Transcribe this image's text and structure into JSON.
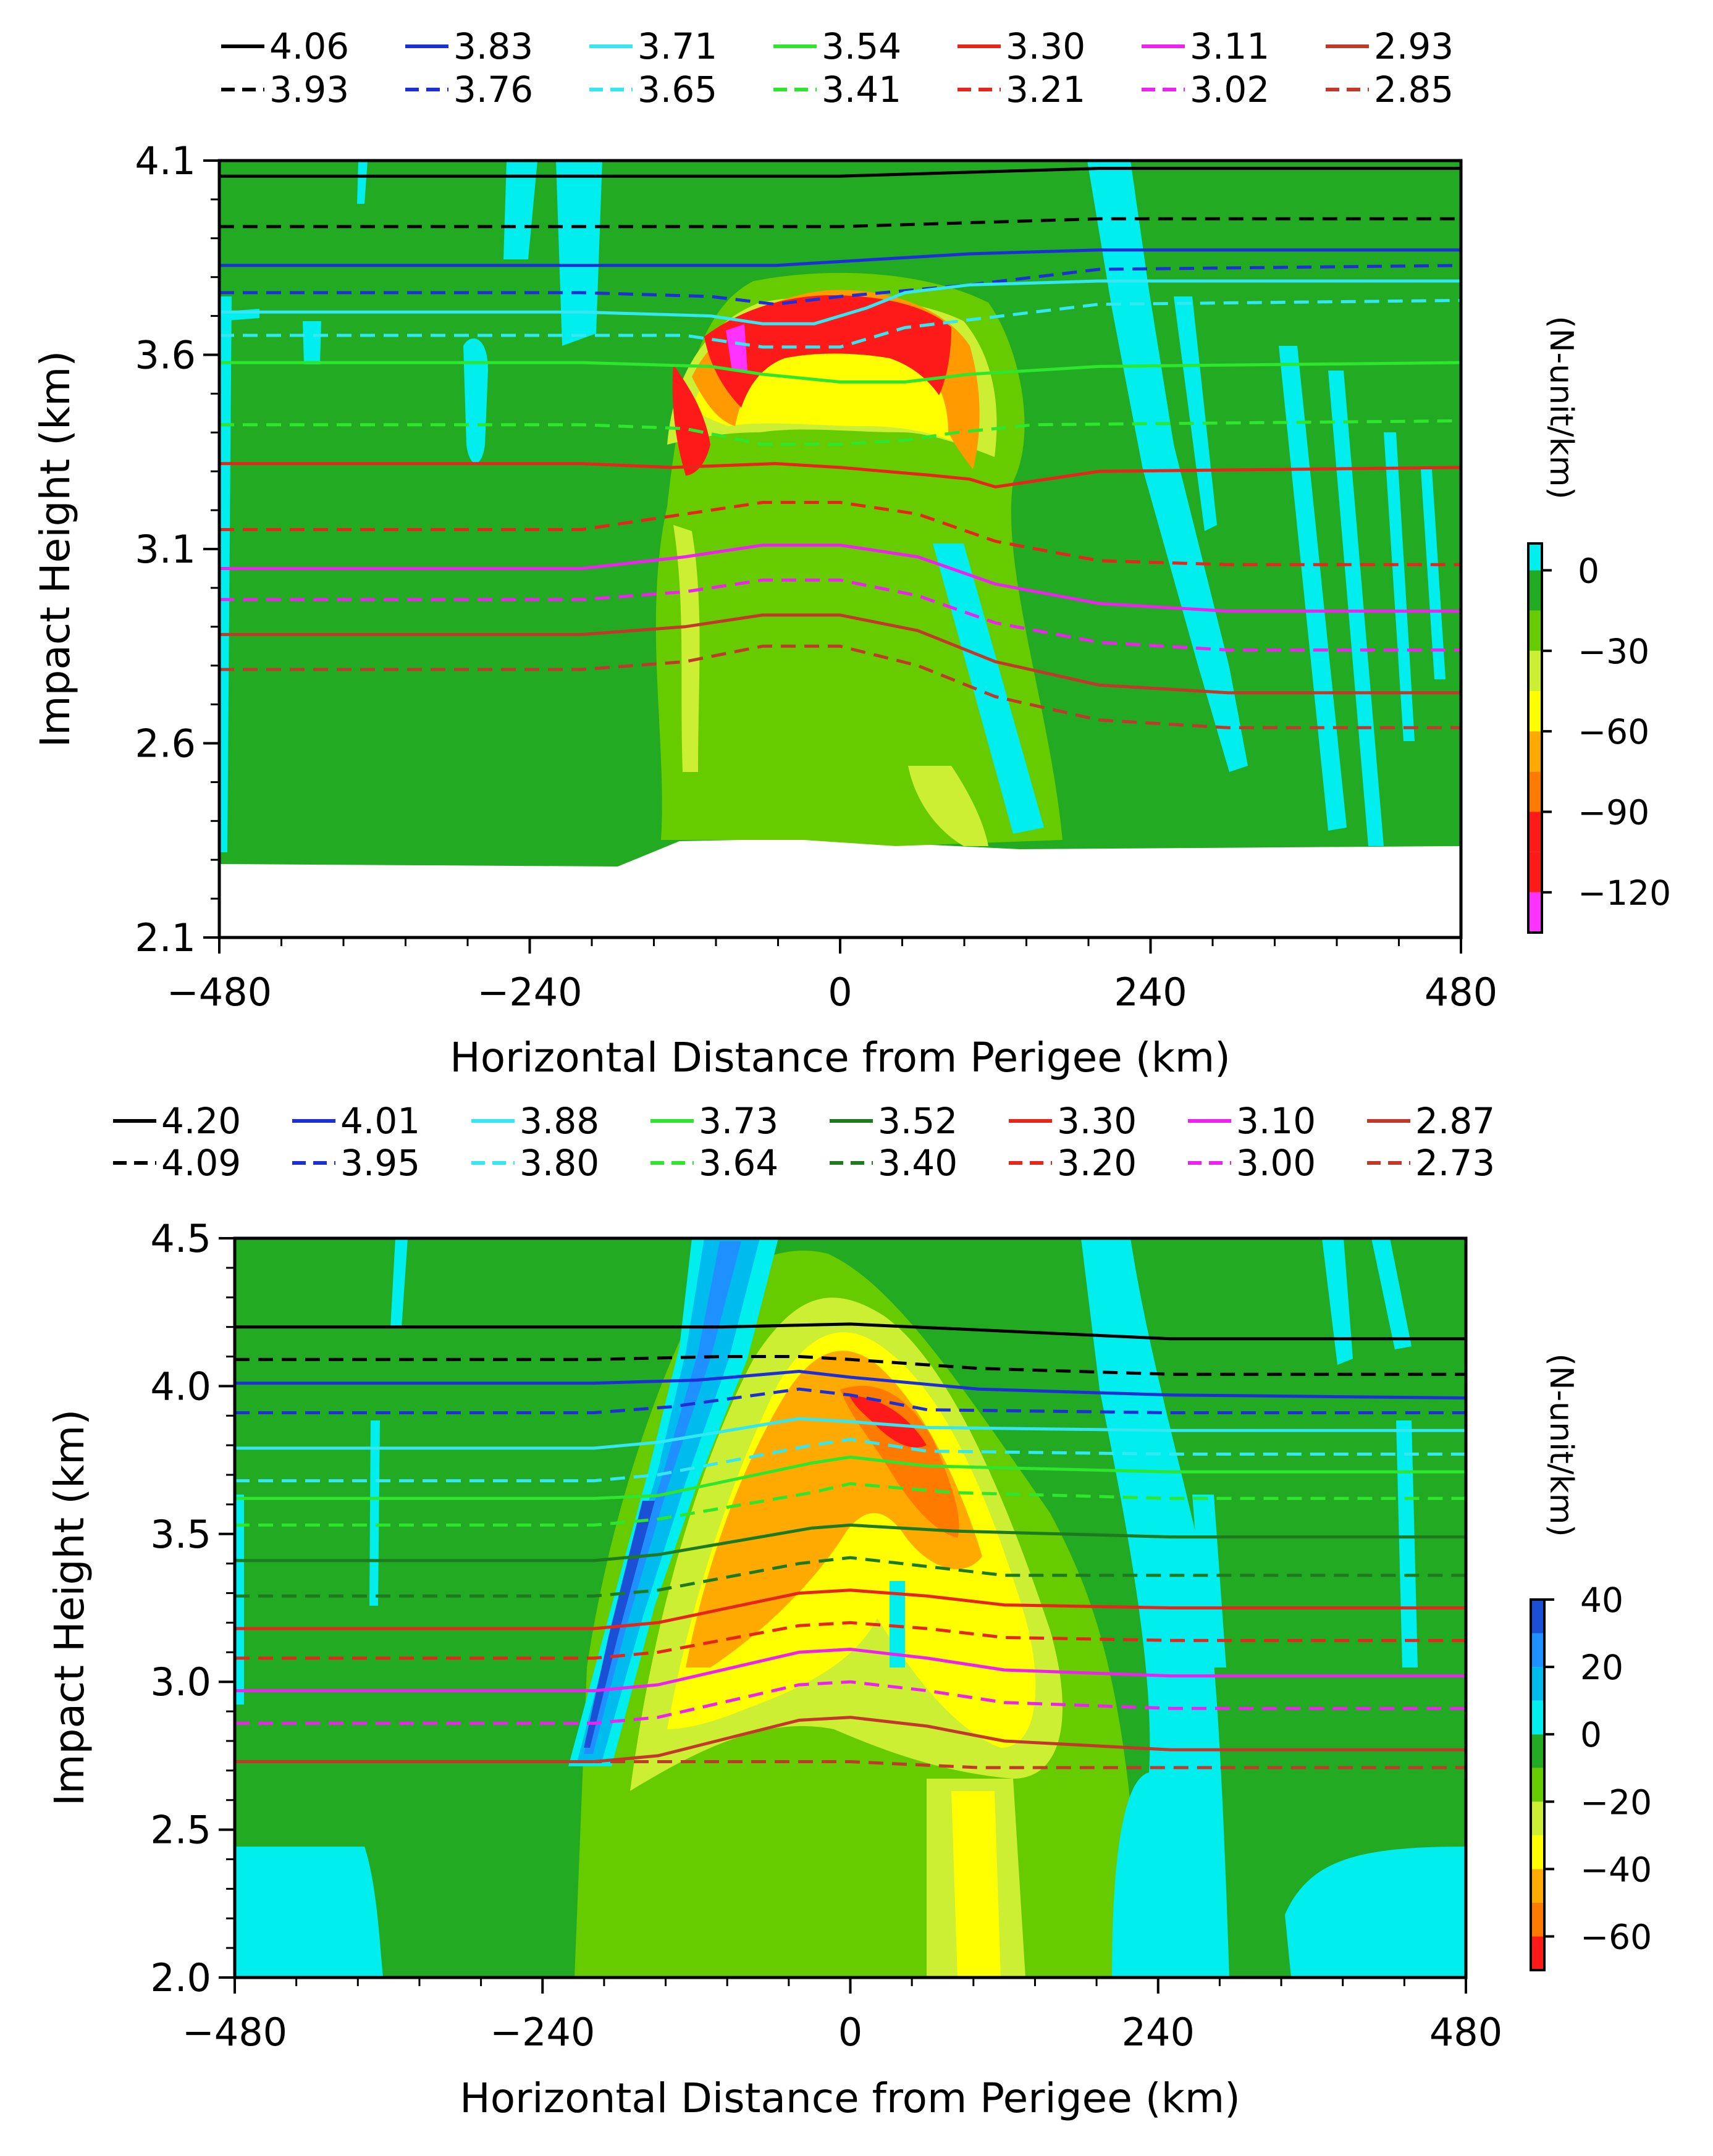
{
  "chart_data": [
    {
      "type": "contour",
      "panel": "top",
      "xlabel": "Horizontal Distance from Perigee (km)",
      "ylabel": "Impact Height (km)",
      "xlim": [
        -480,
        480
      ],
      "ylim": [
        2.1,
        4.1
      ],
      "xticks": [
        -480,
        -240,
        0,
        240,
        480
      ],
      "xtick_labels": [
        "−480",
        "−240",
        "0",
        "240",
        "480"
      ],
      "yticks": [
        2.1,
        2.6,
        3.1,
        3.6,
        4.1
      ],
      "ytick_labels": [
        "2.1",
        "2.6",
        "3.1",
        "3.6",
        "4.1"
      ],
      "colorbar": {
        "label": "(N-unit/km)",
        "range": [
          -135,
          10
        ],
        "ticks": [
          0,
          -30,
          -60,
          -90,
          -120
        ],
        "tick_labels": [
          "0",
          "−30",
          "−60",
          "−90",
          "−120"
        ],
        "levels": [
          {
            "from": -135,
            "to": -120,
            "color": "#ff33ff"
          },
          {
            "from": -120,
            "to": -105,
            "color": "#ff1a1a"
          },
          {
            "from": -105,
            "to": -90,
            "color": "#ff1a1a"
          },
          {
            "from": -90,
            "to": -75,
            "color": "#ff7b00"
          },
          {
            "from": -75,
            "to": -60,
            "color": "#ffaa00"
          },
          {
            "from": -60,
            "to": -45,
            "color": "#ffff00"
          },
          {
            "from": -45,
            "to": -30,
            "color": "#ccee33"
          },
          {
            "from": -30,
            "to": -15,
            "color": "#66cc00"
          },
          {
            "from": -15,
            "to": 0,
            "color": "#22aa22"
          },
          {
            "from": 0,
            "to": 10,
            "color": "#00eeee"
          }
        ]
      },
      "legend": [
        {
          "label": "4.06",
          "style": "solid",
          "color": "#000000"
        },
        {
          "label": "3.83",
          "style": "solid",
          "color": "#1f2fd6"
        },
        {
          "label": "3.71",
          "style": "solid",
          "color": "#33e8f2"
        },
        {
          "label": "3.54",
          "style": "solid",
          "color": "#2ee62e"
        },
        {
          "label": "3.30",
          "style": "solid",
          "color": "#e6261a"
        },
        {
          "label": "3.11",
          "style": "solid",
          "color": "#ee22ee"
        },
        {
          "label": "2.93",
          "style": "solid",
          "color": "#c0392b"
        },
        {
          "label": "3.93",
          "style": "dashed",
          "color": "#000000"
        },
        {
          "label": "3.76",
          "style": "dashed",
          "color": "#1f2fd6"
        },
        {
          "label": "3.65",
          "style": "dashed",
          "color": "#33e8f2"
        },
        {
          "label": "3.41",
          "style": "dashed",
          "color": "#2ee62e"
        },
        {
          "label": "3.21",
          "style": "dashed",
          "color": "#e6261a"
        },
        {
          "label": "3.02",
          "style": "dashed",
          "color": "#ee22ee"
        },
        {
          "label": "2.85",
          "style": "dashed",
          "color": "#c0392b"
        }
      ],
      "ray_paths": [
        {
          "label": "4.06",
          "x": [
            -480,
            -200,
            0,
            100,
            200,
            480
          ],
          "y": [
            4.06,
            4.06,
            4.06,
            4.07,
            4.08,
            4.08
          ]
        },
        {
          "label": "3.93",
          "x": [
            -480,
            -200,
            0,
            100,
            200,
            480
          ],
          "y": [
            3.93,
            3.93,
            3.93,
            3.94,
            3.95,
            3.95
          ]
        },
        {
          "label": "3.83",
          "x": [
            -480,
            -150,
            -50,
            0,
            100,
            200,
            480
          ],
          "y": [
            3.83,
            3.83,
            3.83,
            3.84,
            3.86,
            3.87,
            3.87
          ]
        },
        {
          "label": "3.76",
          "x": [
            -480,
            -200,
            -100,
            -50,
            0,
            100,
            200,
            480
          ],
          "y": [
            3.76,
            3.76,
            3.75,
            3.73,
            3.75,
            3.78,
            3.82,
            3.83
          ]
        },
        {
          "label": "3.71",
          "x": [
            -480,
            -200,
            -100,
            -60,
            -20,
            20,
            50,
            100,
            200,
            480
          ],
          "y": [
            3.71,
            3.71,
            3.7,
            3.68,
            3.68,
            3.72,
            3.76,
            3.78,
            3.79,
            3.79
          ]
        },
        {
          "label": "3.65",
          "x": [
            -480,
            -120,
            -60,
            0,
            50,
            100,
            200,
            480
          ],
          "y": [
            3.65,
            3.65,
            3.62,
            3.62,
            3.67,
            3.69,
            3.73,
            3.74
          ]
        },
        {
          "label": "3.54",
          "x": [
            -480,
            -200,
            -100,
            -60,
            0,
            50,
            100,
            200,
            480
          ],
          "y": [
            3.58,
            3.58,
            3.57,
            3.55,
            3.53,
            3.53,
            3.55,
            3.57,
            3.58
          ]
        },
        {
          "label": "3.41",
          "x": [
            -480,
            -200,
            -120,
            -60,
            0,
            50,
            90,
            150,
            480
          ],
          "y": [
            3.42,
            3.42,
            3.41,
            3.37,
            3.37,
            3.38,
            3.4,
            3.42,
            3.43
          ]
        },
        {
          "label": "3.30",
          "x": [
            -480,
            -200,
            -130,
            -50,
            0,
            70,
            100,
            120,
            200,
            480
          ],
          "y": [
            3.32,
            3.32,
            3.31,
            3.32,
            3.31,
            3.29,
            3.28,
            3.26,
            3.3,
            3.31
          ]
        },
        {
          "label": "3.21",
          "x": [
            -480,
            -200,
            -120,
            -60,
            0,
            60,
            120,
            200,
            300,
            480
          ],
          "y": [
            3.15,
            3.15,
            3.19,
            3.22,
            3.22,
            3.19,
            3.12,
            3.07,
            3.06,
            3.06
          ]
        },
        {
          "label": "3.11",
          "x": [
            -480,
            -200,
            -120,
            -60,
            0,
            60,
            120,
            200,
            300,
            480
          ],
          "y": [
            3.05,
            3.05,
            3.08,
            3.11,
            3.11,
            3.08,
            3.01,
            2.96,
            2.94,
            2.94
          ]
        },
        {
          "label": "3.02",
          "x": [
            -480,
            -200,
            -120,
            -60,
            0,
            60,
            120,
            200,
            300,
            480
          ],
          "y": [
            2.97,
            2.97,
            2.99,
            3.02,
            3.02,
            2.98,
            2.91,
            2.86,
            2.84,
            2.84
          ]
        },
        {
          "label": "2.93",
          "x": [
            -480,
            -200,
            -120,
            -60,
            0,
            60,
            120,
            200,
            300,
            480
          ],
          "y": [
            2.88,
            2.88,
            2.9,
            2.93,
            2.93,
            2.89,
            2.81,
            2.75,
            2.73,
            2.73
          ]
        },
        {
          "label": "2.85",
          "x": [
            -480,
            -200,
            -120,
            -60,
            0,
            60,
            120,
            200,
            300,
            480
          ],
          "y": [
            2.79,
            2.79,
            2.81,
            2.85,
            2.85,
            2.8,
            2.72,
            2.66,
            2.64,
            2.64
          ]
        }
      ]
    },
    {
      "type": "contour",
      "panel": "bottom",
      "xlabel": "Horizontal Distance from Perigee (km)",
      "ylabel": "Impact Height (km)",
      "xlim": [
        -480,
        480
      ],
      "ylim": [
        2.0,
        4.5
      ],
      "xticks": [
        -480,
        -240,
        0,
        240,
        480
      ],
      "xtick_labels": [
        "−480",
        "−240",
        "0",
        "240",
        "480"
      ],
      "yticks": [
        2.0,
        2.5,
        3.0,
        3.5,
        4.0,
        4.5
      ],
      "ytick_labels": [
        "2.0",
        "2.5",
        "3.0",
        "3.5",
        "4.0",
        "4.5"
      ],
      "colorbar": {
        "label": "(N-unit/km)",
        "range": [
          -70,
          40
        ],
        "ticks": [
          40,
          20,
          0,
          -20,
          -40,
          -60
        ],
        "tick_labels": [
          "40",
          "20",
          "0",
          "−20",
          "−40",
          "−60"
        ],
        "levels": [
          {
            "from": -70,
            "to": -60,
            "color": "#ff1a1a"
          },
          {
            "from": -60,
            "to": -50,
            "color": "#ff7b00"
          },
          {
            "from": -50,
            "to": -40,
            "color": "#ffaa00"
          },
          {
            "from": -40,
            "to": -30,
            "color": "#ffff00"
          },
          {
            "from": -30,
            "to": -20,
            "color": "#ccee33"
          },
          {
            "from": -20,
            "to": -10,
            "color": "#66cc00"
          },
          {
            "from": -10,
            "to": 0,
            "color": "#22aa22"
          },
          {
            "from": 0,
            "to": 10,
            "color": "#00eeee"
          },
          {
            "from": 10,
            "to": 20,
            "color": "#00bbee"
          },
          {
            "from": 20,
            "to": 30,
            "color": "#1e90ff"
          },
          {
            "from": 30,
            "to": 40,
            "color": "#1a4fd6"
          }
        ]
      },
      "legend": [
        {
          "label": "4.20",
          "style": "solid",
          "color": "#000000"
        },
        {
          "label": "4.01",
          "style": "solid",
          "color": "#1f2fd6"
        },
        {
          "label": "3.88",
          "style": "solid",
          "color": "#33e8f2"
        },
        {
          "label": "3.73",
          "style": "solid",
          "color": "#2ee62e"
        },
        {
          "label": "3.52",
          "style": "solid",
          "color": "#1e7a1e"
        },
        {
          "label": "3.30",
          "style": "solid",
          "color": "#e6261a"
        },
        {
          "label": "3.10",
          "style": "solid",
          "color": "#ee22ee"
        },
        {
          "label": "2.87",
          "style": "solid",
          "color": "#c0392b"
        },
        {
          "label": "4.09",
          "style": "dashed",
          "color": "#000000"
        },
        {
          "label": "3.95",
          "style": "dashed",
          "color": "#1f2fd6"
        },
        {
          "label": "3.80",
          "style": "dashed",
          "color": "#33e8f2"
        },
        {
          "label": "3.64",
          "style": "dashed",
          "color": "#2ee62e"
        },
        {
          "label": "3.40",
          "style": "dashed",
          "color": "#1e7a1e"
        },
        {
          "label": "3.20",
          "style": "dashed",
          "color": "#e6261a"
        },
        {
          "label": "3.00",
          "style": "dashed",
          "color": "#ee22ee"
        },
        {
          "label": "2.73",
          "style": "dashed",
          "color": "#c0392b"
        }
      ],
      "ray_paths": [
        {
          "label": "4.20",
          "x": [
            -480,
            -200,
            -100,
            0,
            100,
            250,
            480
          ],
          "y": [
            4.2,
            4.2,
            4.2,
            4.21,
            4.19,
            4.16,
            4.16
          ]
        },
        {
          "label": "4.09",
          "x": [
            -480,
            -200,
            -100,
            -40,
            0,
            100,
            250,
            480
          ],
          "y": [
            4.09,
            4.09,
            4.1,
            4.1,
            4.09,
            4.06,
            4.04,
            4.04
          ]
        },
        {
          "label": "4.01",
          "x": [
            -480,
            -200,
            -120,
            -40,
            0,
            100,
            250,
            480
          ],
          "y": [
            4.01,
            4.01,
            4.02,
            4.05,
            4.03,
            3.99,
            3.97,
            3.96
          ]
        },
        {
          "label": "3.95",
          "x": [
            -480,
            -200,
            -140,
            -40,
            0,
            60,
            250,
            480
          ],
          "y": [
            3.91,
            3.91,
            3.93,
            3.99,
            3.97,
            3.92,
            3.91,
            3.91
          ]
        },
        {
          "label": "3.88",
          "x": [
            -480,
            -200,
            -150,
            -40,
            0,
            60,
            250,
            480
          ],
          "y": [
            3.79,
            3.79,
            3.81,
            3.89,
            3.88,
            3.86,
            3.85,
            3.85
          ]
        },
        {
          "label": "3.80",
          "x": [
            -480,
            -200,
            -150,
            -30,
            0,
            60,
            250,
            480
          ],
          "y": [
            3.68,
            3.68,
            3.7,
            3.8,
            3.82,
            3.78,
            3.77,
            3.77
          ]
        },
        {
          "label": "3.73",
          "x": [
            -480,
            -200,
            -150,
            -30,
            0,
            60,
            250,
            480
          ],
          "y": [
            3.62,
            3.62,
            3.63,
            3.74,
            3.76,
            3.73,
            3.71,
            3.71
          ]
        },
        {
          "label": "3.64",
          "x": [
            -480,
            -200,
            -150,
            -30,
            0,
            80,
            250,
            480
          ],
          "y": [
            3.53,
            3.53,
            3.55,
            3.64,
            3.67,
            3.64,
            3.62,
            3.62
          ]
        },
        {
          "label": "3.52",
          "x": [
            -480,
            -200,
            -150,
            -30,
            0,
            80,
            250,
            480
          ],
          "y": [
            3.41,
            3.41,
            3.43,
            3.52,
            3.53,
            3.51,
            3.49,
            3.49
          ]
        },
        {
          "label": "3.40",
          "x": [
            -480,
            -200,
            -150,
            -40,
            0,
            60,
            120,
            250,
            480
          ],
          "y": [
            3.29,
            3.29,
            3.31,
            3.4,
            3.42,
            3.39,
            3.36,
            3.36,
            3.36
          ]
        },
        {
          "label": "3.30",
          "x": [
            -480,
            -200,
            -150,
            -40,
            0,
            60,
            120,
            250,
            480
          ],
          "y": [
            3.18,
            3.18,
            3.2,
            3.3,
            3.31,
            3.29,
            3.26,
            3.25,
            3.25
          ]
        },
        {
          "label": "3.20",
          "x": [
            -480,
            -200,
            -150,
            -40,
            0,
            60,
            120,
            250,
            480
          ],
          "y": [
            3.08,
            3.08,
            3.1,
            3.19,
            3.2,
            3.18,
            3.15,
            3.14,
            3.14
          ]
        },
        {
          "label": "3.10",
          "x": [
            -480,
            -200,
            -150,
            -40,
            0,
            60,
            120,
            250,
            480
          ],
          "y": [
            2.97,
            2.97,
            2.99,
            3.1,
            3.11,
            3.08,
            3.04,
            3.02,
            3.02
          ]
        },
        {
          "label": "3.00",
          "x": [
            -480,
            -200,
            -150,
            -40,
            0,
            60,
            120,
            250,
            480
          ],
          "y": [
            2.86,
            2.86,
            2.88,
            2.99,
            3.0,
            2.97,
            2.93,
            2.91,
            2.91
          ]
        },
        {
          "label": "2.87",
          "x": [
            -480,
            -200,
            -150,
            -40,
            0,
            60,
            120,
            250,
            480
          ],
          "y": [
            2.73,
            2.73,
            2.75,
            2.87,
            2.88,
            2.85,
            2.8,
            2.77,
            2.77
          ]
        },
        {
          "label": "2.73",
          "x": [
            -480,
            -200,
            -100,
            0,
            100,
            250,
            480
          ],
          "y": [
            2.73,
            2.73,
            2.73,
            2.73,
            2.71,
            2.71,
            2.71
          ]
        }
      ]
    }
  ]
}
